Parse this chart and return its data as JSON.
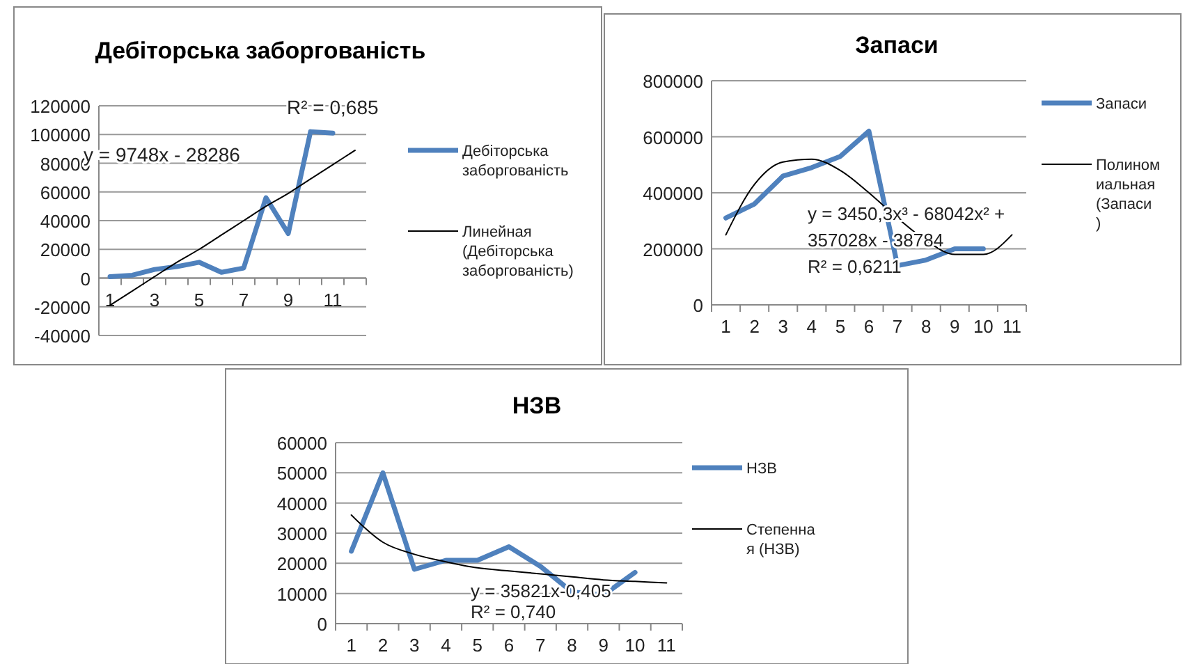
{
  "chart_data": [
    {
      "type": "line",
      "title": "Дебіторська заборгованість",
      "categories": [
        "1",
        null,
        "3",
        null,
        "5",
        null,
        "7",
        null,
        "9",
        null,
        "11",
        null
      ],
      "ylim": [
        -40000,
        120000
      ],
      "yticks": [
        -40000,
        -20000,
        0,
        20000,
        40000,
        60000,
        80000,
        100000,
        120000
      ],
      "grid": "y",
      "legend": "right",
      "annotations": [
        "R² = 0,685",
        "y = 9748x - 28286"
      ],
      "series": [
        {
          "name": "Дебіторська заборгованість",
          "color": "#4f81bd",
          "values": [
            1000,
            2000,
            6000,
            8000,
            11000,
            4000,
            7000,
            56000,
            31000,
            102000,
            101000,
            null
          ]
        },
        {
          "name": "Линейная (Дебіторська заборгованість)",
          "color": "#000000",
          "values": [
            -19000,
            -9000,
            1000,
            11000,
            20000,
            30000,
            40000,
            50000,
            59000,
            69000,
            79000,
            89000
          ]
        }
      ]
    },
    {
      "type": "line",
      "title": "Запаси",
      "categories": [
        "1",
        "2",
        "3",
        "4",
        "5",
        "6",
        "7",
        "8",
        "9",
        "10",
        "11"
      ],
      "ylim": [
        0,
        800000
      ],
      "yticks": [
        0,
        200000,
        400000,
        600000,
        800000
      ],
      "grid": "y",
      "legend": "right",
      "annotations": [
        "y = 3450,3x³ - 68042x² + ",
        "357028x - 38784",
        "R² = 0,6211"
      ],
      "series": [
        {
          "name": "Запаси",
          "color": "#4f81bd",
          "values": [
            310000,
            360000,
            460000,
            490000,
            530000,
            620000,
            140000,
            160000,
            200000,
            200000,
            null
          ]
        },
        {
          "name": "Полиномиальная (Запаси)",
          "color": "#000000",
          "values": [
            250000,
            430000,
            510000,
            520000,
            480000,
            400000,
            310000,
            230000,
            180000,
            180000,
            250000
          ]
        }
      ]
    },
    {
      "type": "line",
      "title": "НЗВ",
      "categories": [
        "1",
        "2",
        "3",
        "4",
        "5",
        "6",
        "7",
        "8",
        "9",
        "10",
        "11"
      ],
      "ylim": [
        0,
        60000
      ],
      "yticks": [
        0,
        10000,
        20000,
        30000,
        40000,
        50000,
        60000
      ],
      "grid": "y",
      "legend": "right",
      "annotations": [
        "y = 35821x-0,405",
        "R² = 0,740"
      ],
      "series": [
        {
          "name": "НЗВ",
          "color": "#4f81bd",
          "values": [
            24000,
            50000,
            18000,
            21000,
            21000,
            25500,
            19000,
            10500,
            9500,
            17000,
            null
          ]
        },
        {
          "name": "Степенная (НЗВ)",
          "color": "#000000",
          "values": [
            36000,
            27000,
            23000,
            20500,
            18500,
            17500,
            16500,
            15500,
            14500,
            14000,
            13500
          ]
        }
      ]
    }
  ]
}
